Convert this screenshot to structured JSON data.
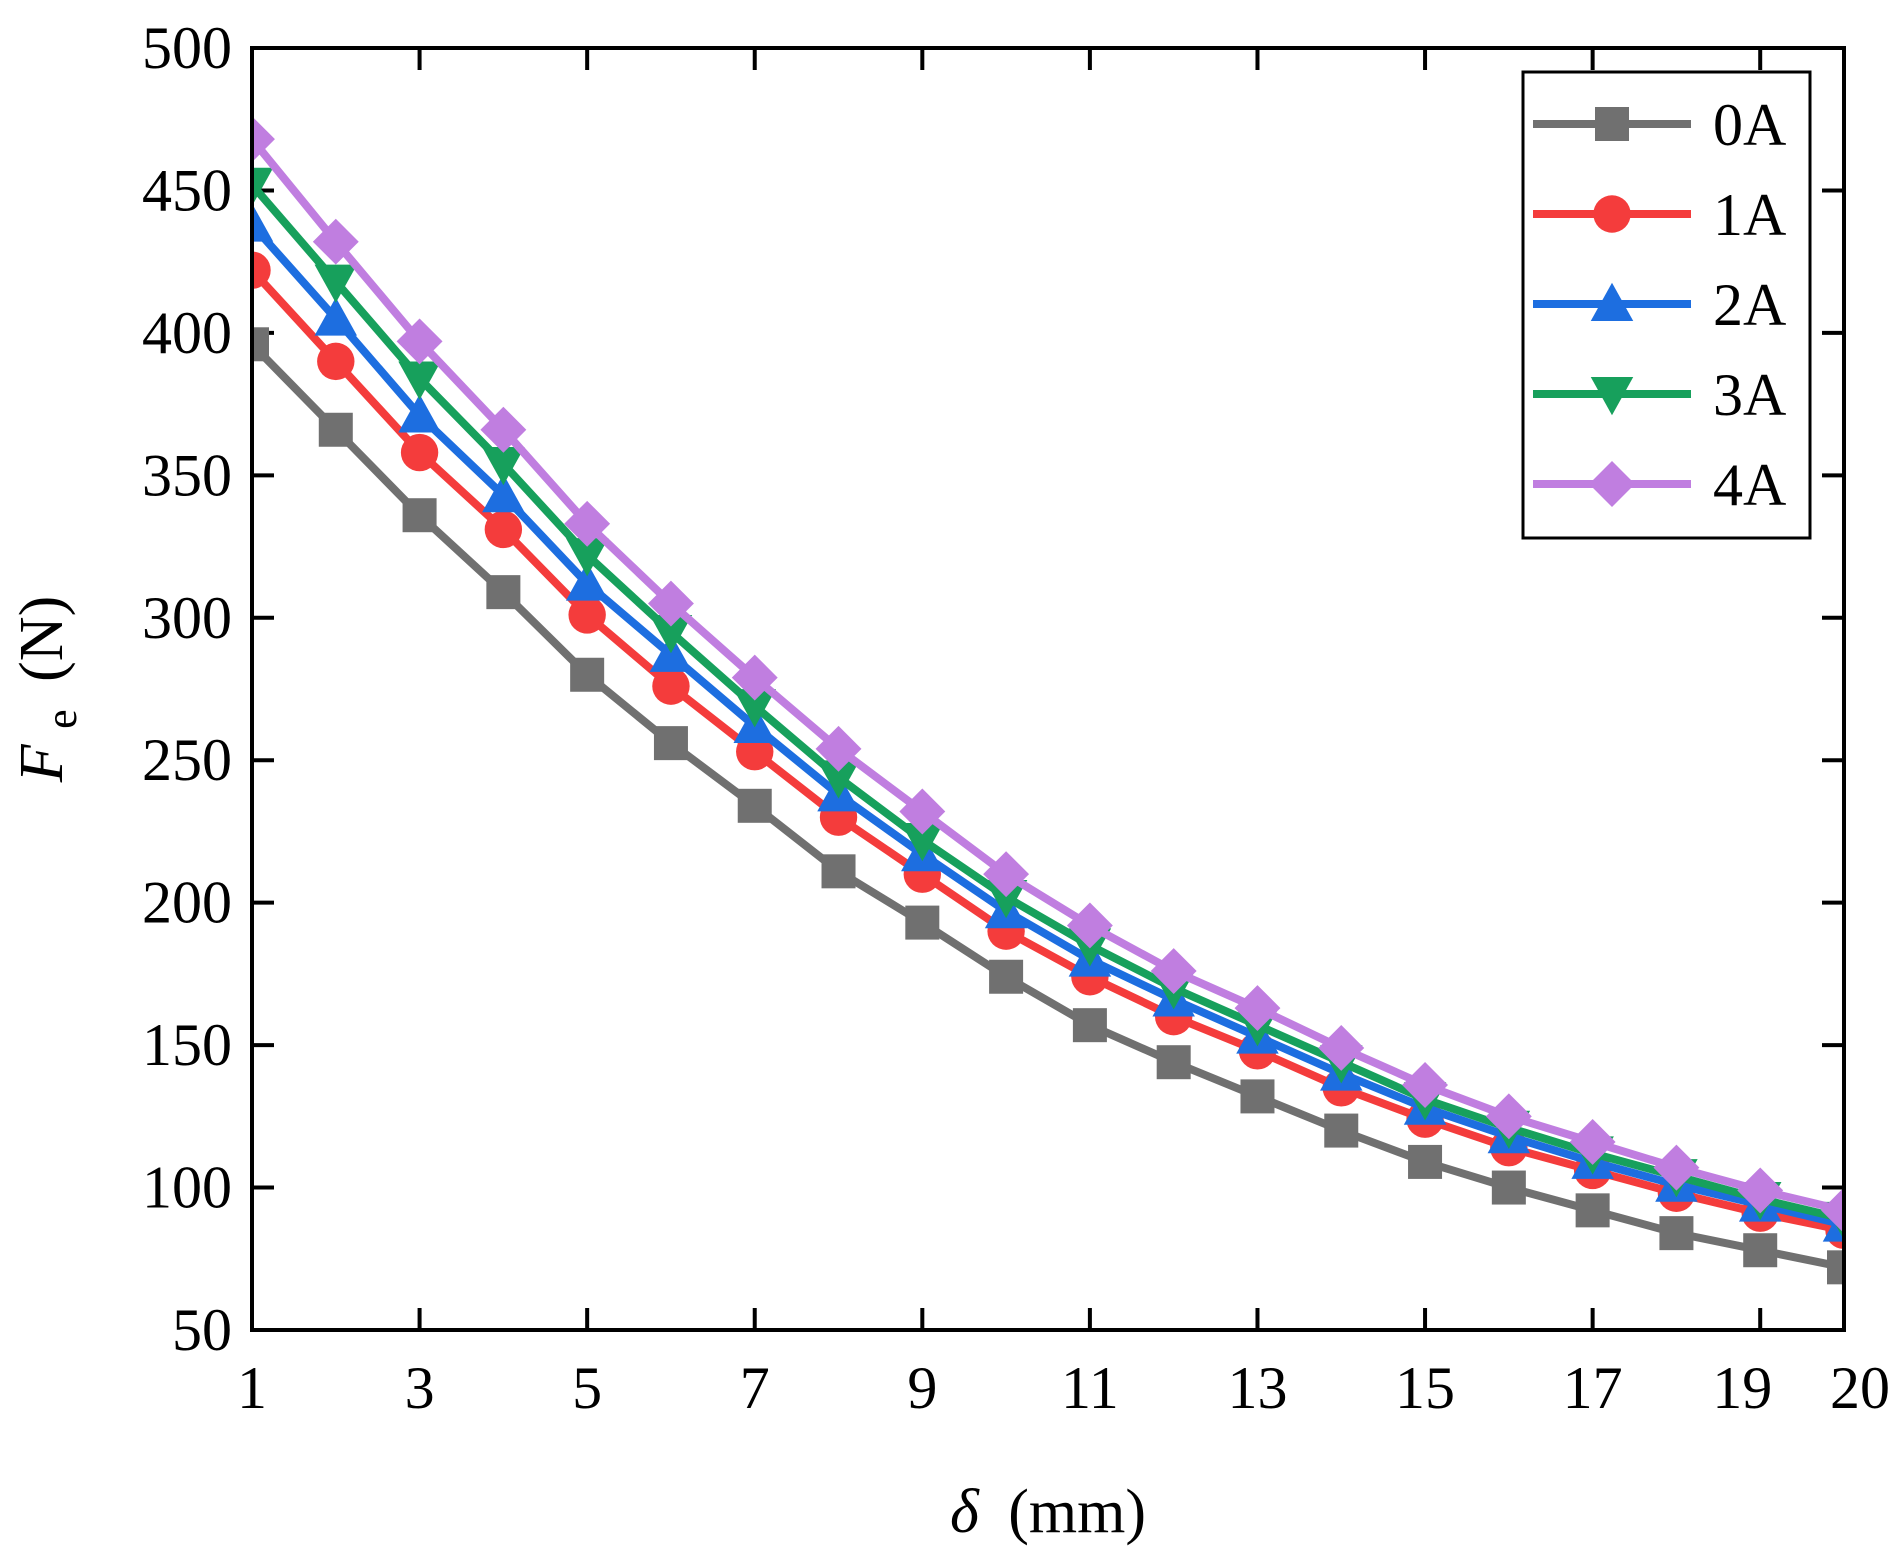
{
  "chart_data": {
    "type": "line",
    "title": "",
    "xlabel_symbol": "δ",
    "xlabel_unit": "(mm)",
    "ylabel_symbol": "F",
    "ylabel_subscript": "e",
    "ylabel_unit": "(N)",
    "xlim": [
      1,
      20
    ],
    "ylim": [
      50,
      500
    ],
    "xticks": [
      "1",
      "3",
      "5",
      "7",
      "9",
      "11",
      "13",
      "15",
      "17",
      "19",
      "20"
    ],
    "yticks": [
      "50",
      "100",
      "150",
      "200",
      "250",
      "300",
      "350",
      "400",
      "450",
      "500"
    ],
    "x": [
      1,
      2,
      3,
      4,
      5,
      6,
      7,
      8,
      9,
      10,
      11,
      12,
      13,
      14,
      15,
      16,
      17,
      18,
      19,
      20
    ],
    "legend_position": "top-right",
    "series": [
      {
        "name": "0A",
        "color": "#707070",
        "marker": "square",
        "values": [
          396,
          366,
          336,
          309,
          280,
          256,
          234,
          211,
          193,
          174,
          157,
          144,
          132,
          120,
          109,
          100,
          92,
          84,
          78,
          72
        ]
      },
      {
        "name": "1A",
        "color": "#f43c3c",
        "marker": "circle",
        "values": [
          422,
          390,
          358,
          331,
          301,
          276,
          253,
          230,
          210,
          190,
          174,
          160,
          148,
          135,
          124,
          114,
          106,
          98,
          91,
          85
        ]
      },
      {
        "name": "2A",
        "color": "#1d6ee0",
        "marker": "triangle-up",
        "values": [
          438,
          405,
          371,
          343,
          312,
          287,
          262,
          238,
          217,
          197,
          180,
          166,
          153,
          140,
          128,
          118,
          109,
          101,
          94,
          87
        ]
      },
      {
        "name": "3A",
        "color": "#17a05c",
        "marker": "triangle-down",
        "values": [
          452,
          418,
          384,
          354,
          322,
          295,
          269,
          244,
          222,
          202,
          185,
          170,
          157,
          144,
          131,
          121,
          112,
          104,
          96,
          89
        ]
      },
      {
        "name": "4A",
        "color": "#c07ee0",
        "marker": "diamond",
        "values": [
          468,
          432,
          397,
          366,
          333,
          305,
          279,
          254,
          232,
          210,
          192,
          176,
          163,
          149,
          136,
          125,
          116,
          107,
          99,
          92
        ]
      }
    ]
  }
}
